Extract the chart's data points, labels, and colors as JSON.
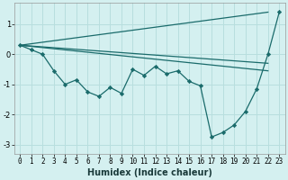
{
  "xlabel": "Humidex (Indice chaleur)",
  "bg_color": "#d4f0f0",
  "grid_color": "#b8dede",
  "line_color": "#1a6b6b",
  "xlim": [
    -0.5,
    23.5
  ],
  "ylim": [
    -3.3,
    1.7
  ],
  "yticks": [
    -3,
    -2,
    -1,
    0,
    1
  ],
  "xticks": [
    0,
    1,
    2,
    3,
    4,
    5,
    6,
    7,
    8,
    9,
    10,
    11,
    12,
    13,
    14,
    15,
    16,
    17,
    18,
    19,
    20,
    21,
    22,
    23
  ],
  "main_line": {
    "x": [
      0,
      1,
      2,
      3,
      4,
      5,
      6,
      7,
      8,
      9,
      10,
      11,
      12,
      13,
      14,
      15,
      16,
      17,
      18,
      19,
      20,
      21,
      22,
      23
    ],
    "y": [
      0.3,
      0.15,
      0.0,
      -0.55,
      -1.0,
      -0.85,
      -1.25,
      -1.4,
      -1.1,
      -1.3,
      -0.5,
      -0.7,
      -0.4,
      -0.65,
      -0.55,
      -0.9,
      -1.05,
      -2.75,
      -2.6,
      -2.35,
      -1.9,
      -1.15,
      0.0,
      1.4
    ]
  },
  "trend_line1": {
    "x": [
      0,
      22
    ],
    "y": [
      0.3,
      1.4
    ]
  },
  "trend_line2": {
    "x": [
      0,
      22
    ],
    "y": [
      0.3,
      -0.3
    ]
  },
  "trend_line3": {
    "x": [
      0,
      22
    ],
    "y": [
      0.3,
      -0.55
    ]
  }
}
